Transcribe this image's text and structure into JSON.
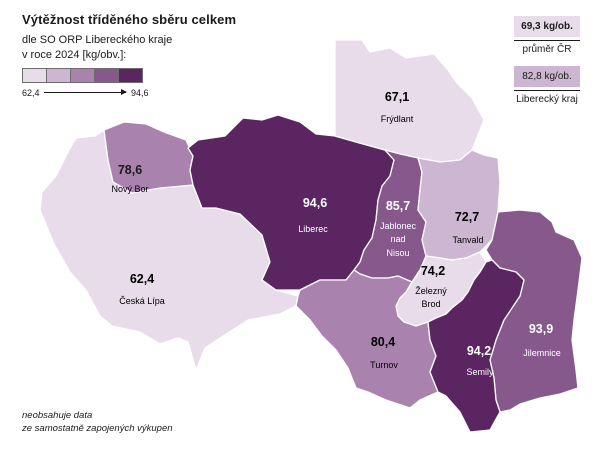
{
  "title": "Výtěžnost tříděného sběru celkem",
  "subtitle_lines": [
    "dle SO ORP Libereckého kraje",
    "v roce 2024 [kg/obv.]:"
  ],
  "legend": {
    "min": "62,4",
    "max": "94,6",
    "colors": [
      "#e8dcea",
      "#cdb6d1",
      "#a983ae",
      "#86588c",
      "#5a2561"
    ]
  },
  "benchmarks": [
    {
      "value": "69,3 kg/ob.",
      "label": "průměr ČR",
      "color": "#e8dcea"
    },
    {
      "value": "82,8 kg/ob.",
      "label": "Liberecký kraj",
      "color": "#cdb6d1"
    }
  ],
  "note_lines": [
    "neobsahuje data",
    "ze samostatně zapojených výkupen"
  ],
  "regions": [
    {
      "id": "frydlant",
      "name": "Frýdlant",
      "value": "67,1",
      "color": "#e8dcea"
    },
    {
      "id": "nowy-bor",
      "name": "Nový Bor",
      "value": "78,6",
      "color": "#a983ae"
    },
    {
      "id": "liberec",
      "name": "Liberec",
      "value": "94,6",
      "color": "#5a2561"
    },
    {
      "id": "jablonec",
      "name": "Jablonec nad Nisou",
      "value": "85,7",
      "color": "#86588c"
    },
    {
      "id": "tanvald",
      "name": "Tanvald",
      "value": "72,7",
      "color": "#cdb6d1"
    },
    {
      "id": "ceska-lipa",
      "name": "Česká Lípa",
      "value": "62,4",
      "color": "#e8dcea"
    },
    {
      "id": "zelezny-brod",
      "name": "Železný Brod",
      "value": "74,2",
      "color": "#e8dcea"
    },
    {
      "id": "turnov",
      "name": "Turnov",
      "value": "80,4",
      "color": "#a983ae"
    },
    {
      "id": "semily",
      "name": "Semily",
      "value": "94,2",
      "color": "#5a2561"
    },
    {
      "id": "jilemnice",
      "name": "Jilemnice",
      "value": "93,9",
      "color": "#86588c"
    }
  ]
}
